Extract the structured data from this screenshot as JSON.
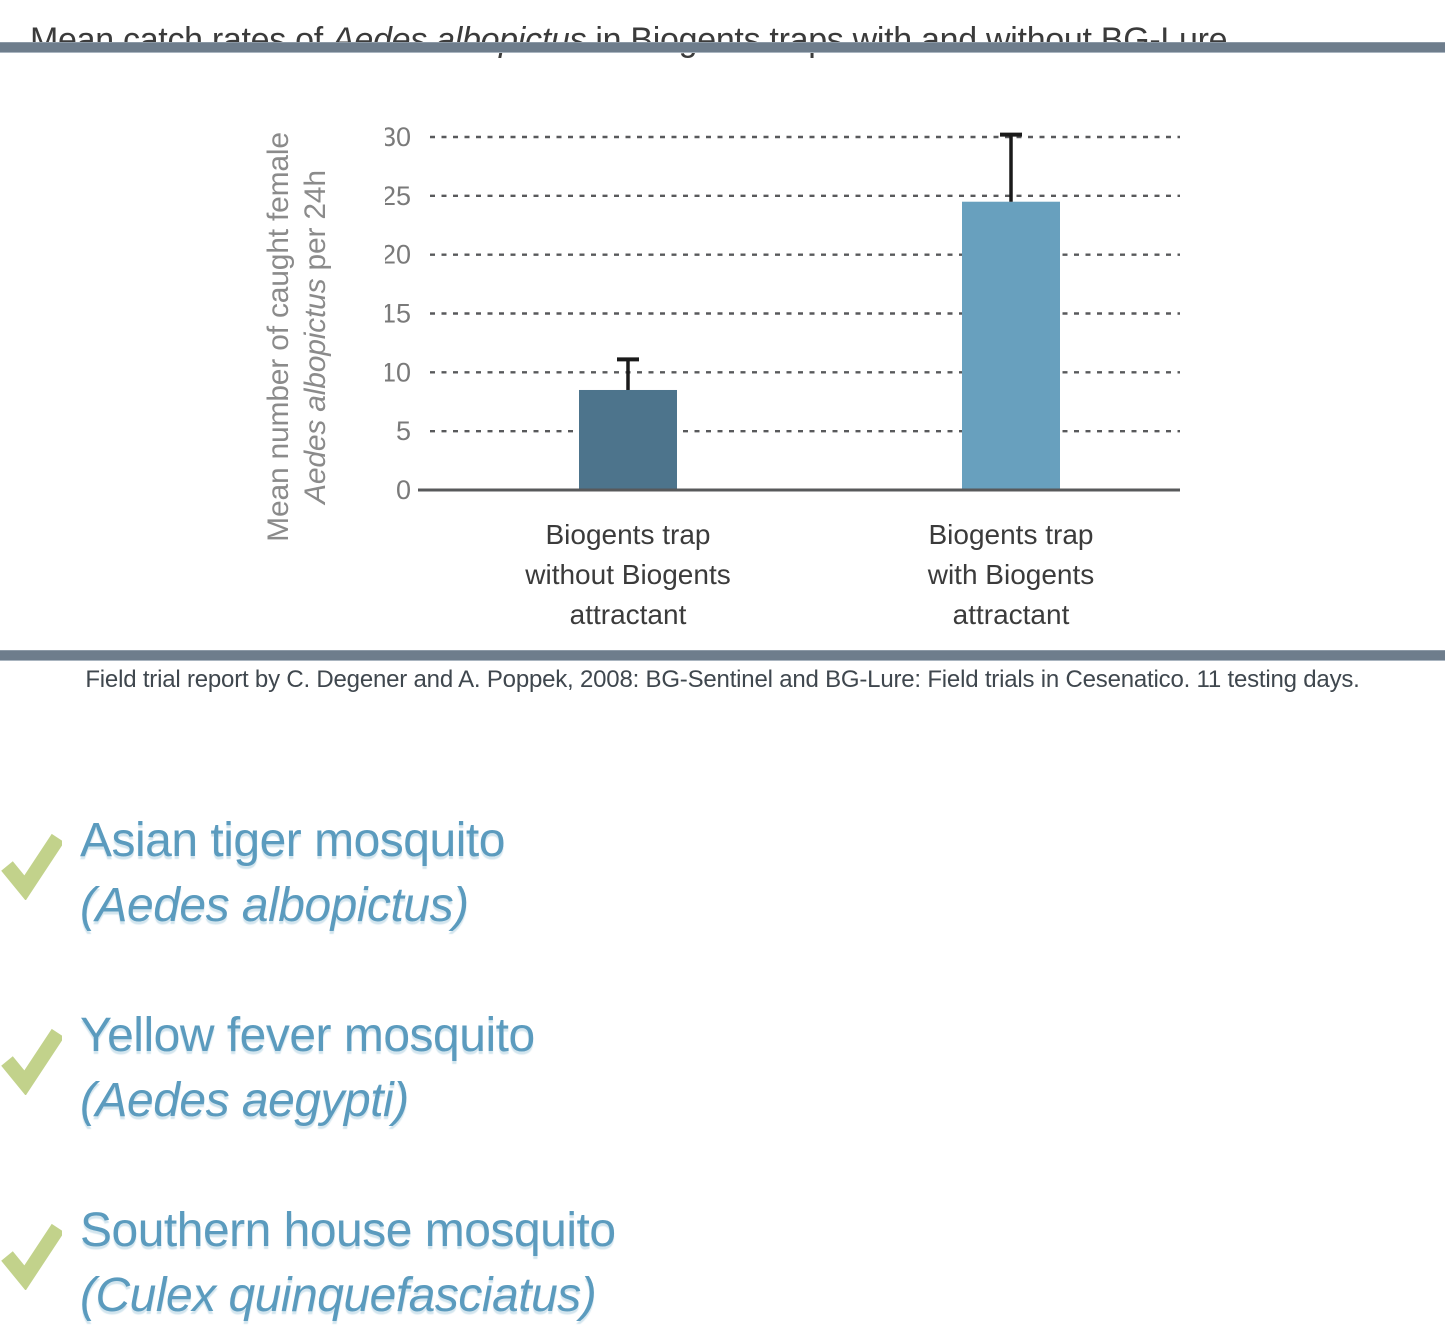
{
  "title": {
    "prefix": "Mean catch rates of ",
    "italic": "Aedes albopictus",
    "suffix": " in Biogents traps with and without BG-Lure"
  },
  "chart_data": {
    "type": "bar",
    "title": "Mean catch rates of Aedes albopictus in Biogents traps with and without BG-Lure",
    "ylabel_line1": "Mean number of caught female",
    "ylabel_line2_italic": "Aedes albopictus",
    "ylabel_line2_rest": " per 24h",
    "categories": [
      [
        "Biogents trap",
        "without Biogents",
        "attractant"
      ],
      [
        "Biogents trap",
        "with Biogents",
        "attractant"
      ]
    ],
    "values": [
      8.5,
      24.5
    ],
    "error_upper": [
      11.1,
      30.2
    ],
    "yticks": [
      0,
      5,
      10,
      15,
      20,
      25,
      30
    ],
    "ylim": [
      0,
      30
    ],
    "grid": "horizontal-dashed",
    "legend": "none",
    "bar_colors": [
      "#4d748c",
      "#68a0be"
    ]
  },
  "citation": "Field trial report by C. Degener and A. Poppek, 2008: BG-Sentinel and BG-Lure: Field trials in Cesenatico. 11 testing days.",
  "species_list": [
    {
      "common": "Asian tiger mosquito",
      "scientific": "(Aedes albopictus)"
    },
    {
      "common": "Yellow fever mosquito",
      "scientific": "(Aedes aegypti)"
    },
    {
      "common": "Southern house mosquito",
      "scientific": "(Culex quinquefasciatus)"
    }
  ],
  "colors": {
    "bar_without_lure": "#4d748c",
    "bar_with_lure": "#68a0be",
    "accent_blue_text": "#5b9bbe",
    "check_green": "#c2d28b",
    "divider": "#6e7d8c",
    "gridline": "#58595b",
    "error_bar": "#1a1a1a"
  }
}
